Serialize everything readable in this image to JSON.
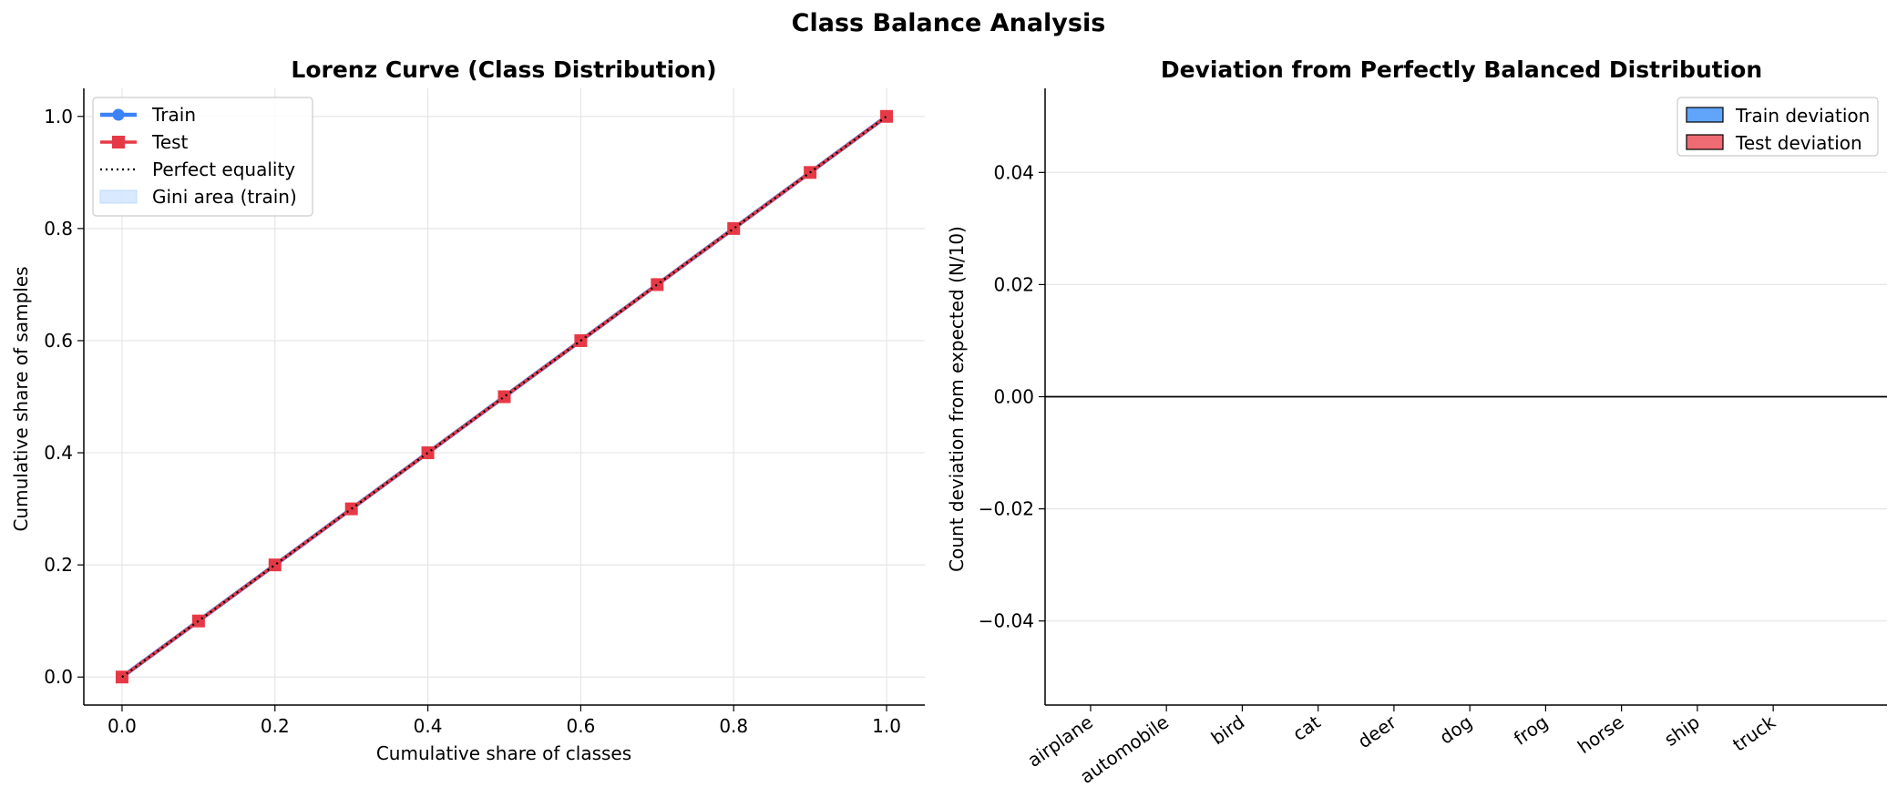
{
  "figure": {
    "title": "Class Balance Analysis"
  },
  "chart_data": [
    {
      "type": "line",
      "title": "Lorenz Curve (Class Distribution)",
      "xlabel": "Cumulative share of classes",
      "ylabel": "Cumulative share of samples",
      "xlim": [
        -0.05,
        1.05
      ],
      "ylim": [
        -0.05,
        1.05
      ],
      "xticks": [
        "0.0",
        "0.2",
        "0.4",
        "0.6",
        "0.8",
        "1.0"
      ],
      "yticks": [
        "0.0",
        "0.2",
        "0.4",
        "0.6",
        "0.8",
        "1.0"
      ],
      "grid": true,
      "legend_position": "top-left",
      "x": [
        0.0,
        0.1,
        0.2,
        0.3,
        0.4,
        0.5,
        0.6,
        0.7,
        0.8,
        0.9,
        1.0
      ],
      "series": [
        {
          "name": "Train",
          "marker": "circle",
          "color": "#3b82f6",
          "values": [
            0.0,
            0.1,
            0.2,
            0.3,
            0.4,
            0.5,
            0.6,
            0.7,
            0.8,
            0.9,
            1.0
          ]
        },
        {
          "name": "Test",
          "marker": "square",
          "color": "#e63946",
          "values": [
            0.0,
            0.1,
            0.2,
            0.3,
            0.4,
            0.5,
            0.6,
            0.7,
            0.8,
            0.9,
            1.0
          ]
        },
        {
          "name": "Perfect equality",
          "style": "dotted",
          "color": "#000000",
          "values": [
            0.0,
            1.0
          ],
          "x": [
            0.0,
            1.0
          ]
        },
        {
          "name": "Gini area (train)",
          "style": "fill",
          "color": "#bfdbfe",
          "values": [
            0.0,
            0.1,
            0.2,
            0.3,
            0.4,
            0.5,
            0.6,
            0.7,
            0.8,
            0.9,
            1.0
          ]
        }
      ]
    },
    {
      "type": "bar",
      "title": "Deviation from Perfectly Balanced Distribution",
      "xlabel": "",
      "ylabel": "Count deviation from expected (N/10)",
      "ylim": [
        -0.055,
        0.055
      ],
      "yticks": [
        "−0.04",
        "−0.02",
        "0.00",
        "0.02",
        "0.04"
      ],
      "grid": true,
      "legend_position": "top-right",
      "categories": [
        "airplane",
        "automobile",
        "bird",
        "cat",
        "deer",
        "dog",
        "frog",
        "horse",
        "ship",
        "truck"
      ],
      "series": [
        {
          "name": "Train deviation",
          "color": "#60a5fa",
          "values": [
            0,
            0,
            0,
            0,
            0,
            0,
            0,
            0,
            0,
            0
          ]
        },
        {
          "name": "Test deviation",
          "color": "#ef6b73",
          "values": [
            0,
            0,
            0,
            0,
            0,
            0,
            0,
            0,
            0,
            0
          ]
        }
      ]
    }
  ]
}
